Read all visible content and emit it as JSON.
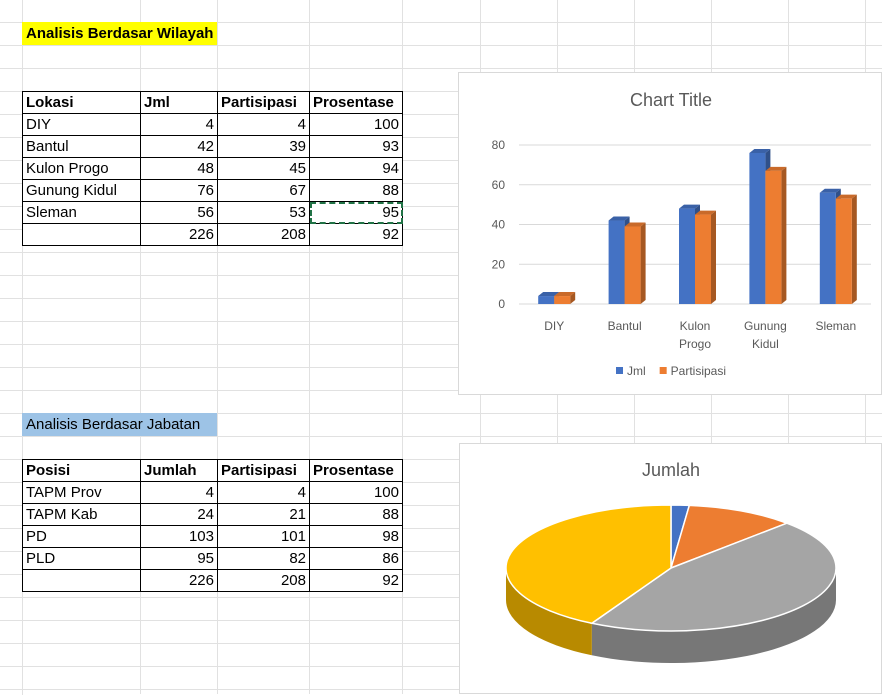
{
  "section1": {
    "title": "Analisis Berdasar Wilayah",
    "table": {
      "header": [
        "Lokasi",
        "Jml",
        "Partisipasi",
        "Prosentase"
      ],
      "rows": [
        [
          "DIY",
          4,
          4,
          100
        ],
        [
          "Bantul",
          42,
          39,
          93
        ],
        [
          "Kulon Progo",
          48,
          45,
          94
        ],
        [
          "Gunung Kidul",
          76,
          67,
          88
        ],
        [
          "Sleman",
          56,
          53,
          95
        ]
      ],
      "total": [
        226,
        208,
        92
      ]
    }
  },
  "section2": {
    "title": "Analisis Berdasar Jabatan",
    "table": {
      "header": [
        "Posisi",
        "Jumlah",
        "Partisipasi",
        "Prosentase"
      ],
      "rows": [
        [
          "TAPM Prov",
          4,
          4,
          100
        ],
        [
          "TAPM Kab",
          24,
          21,
          88
        ],
        [
          "PD",
          103,
          101,
          98
        ],
        [
          "PLD",
          95,
          82,
          86
        ]
      ],
      "total": [
        226,
        208,
        92
      ]
    }
  },
  "chart_data": [
    {
      "type": "bar",
      "title": "Chart Title",
      "categories": [
        "DIY",
        "Bantul",
        "Kulon Progo",
        "Gunung Kidul",
        "Sleman"
      ],
      "series": [
        {
          "name": "Jml",
          "color": "#4472c4",
          "values": [
            4,
            42,
            48,
            76,
            56
          ]
        },
        {
          "name": "Partisipasi",
          "color": "#ed7d31",
          "values": [
            4,
            39,
            45,
            67,
            53
          ]
        }
      ],
      "ylim": [
        0,
        80
      ],
      "yticks": [
        0,
        20,
        40,
        60,
        80
      ],
      "grid": true,
      "legend": "bottom"
    },
    {
      "type": "pie",
      "title": "Jumlah",
      "values": [
        4,
        24,
        103,
        95
      ],
      "colors": [
        "#4472c4",
        "#ed7d31",
        "#a5a5a5",
        "#ffc000"
      ]
    }
  ]
}
